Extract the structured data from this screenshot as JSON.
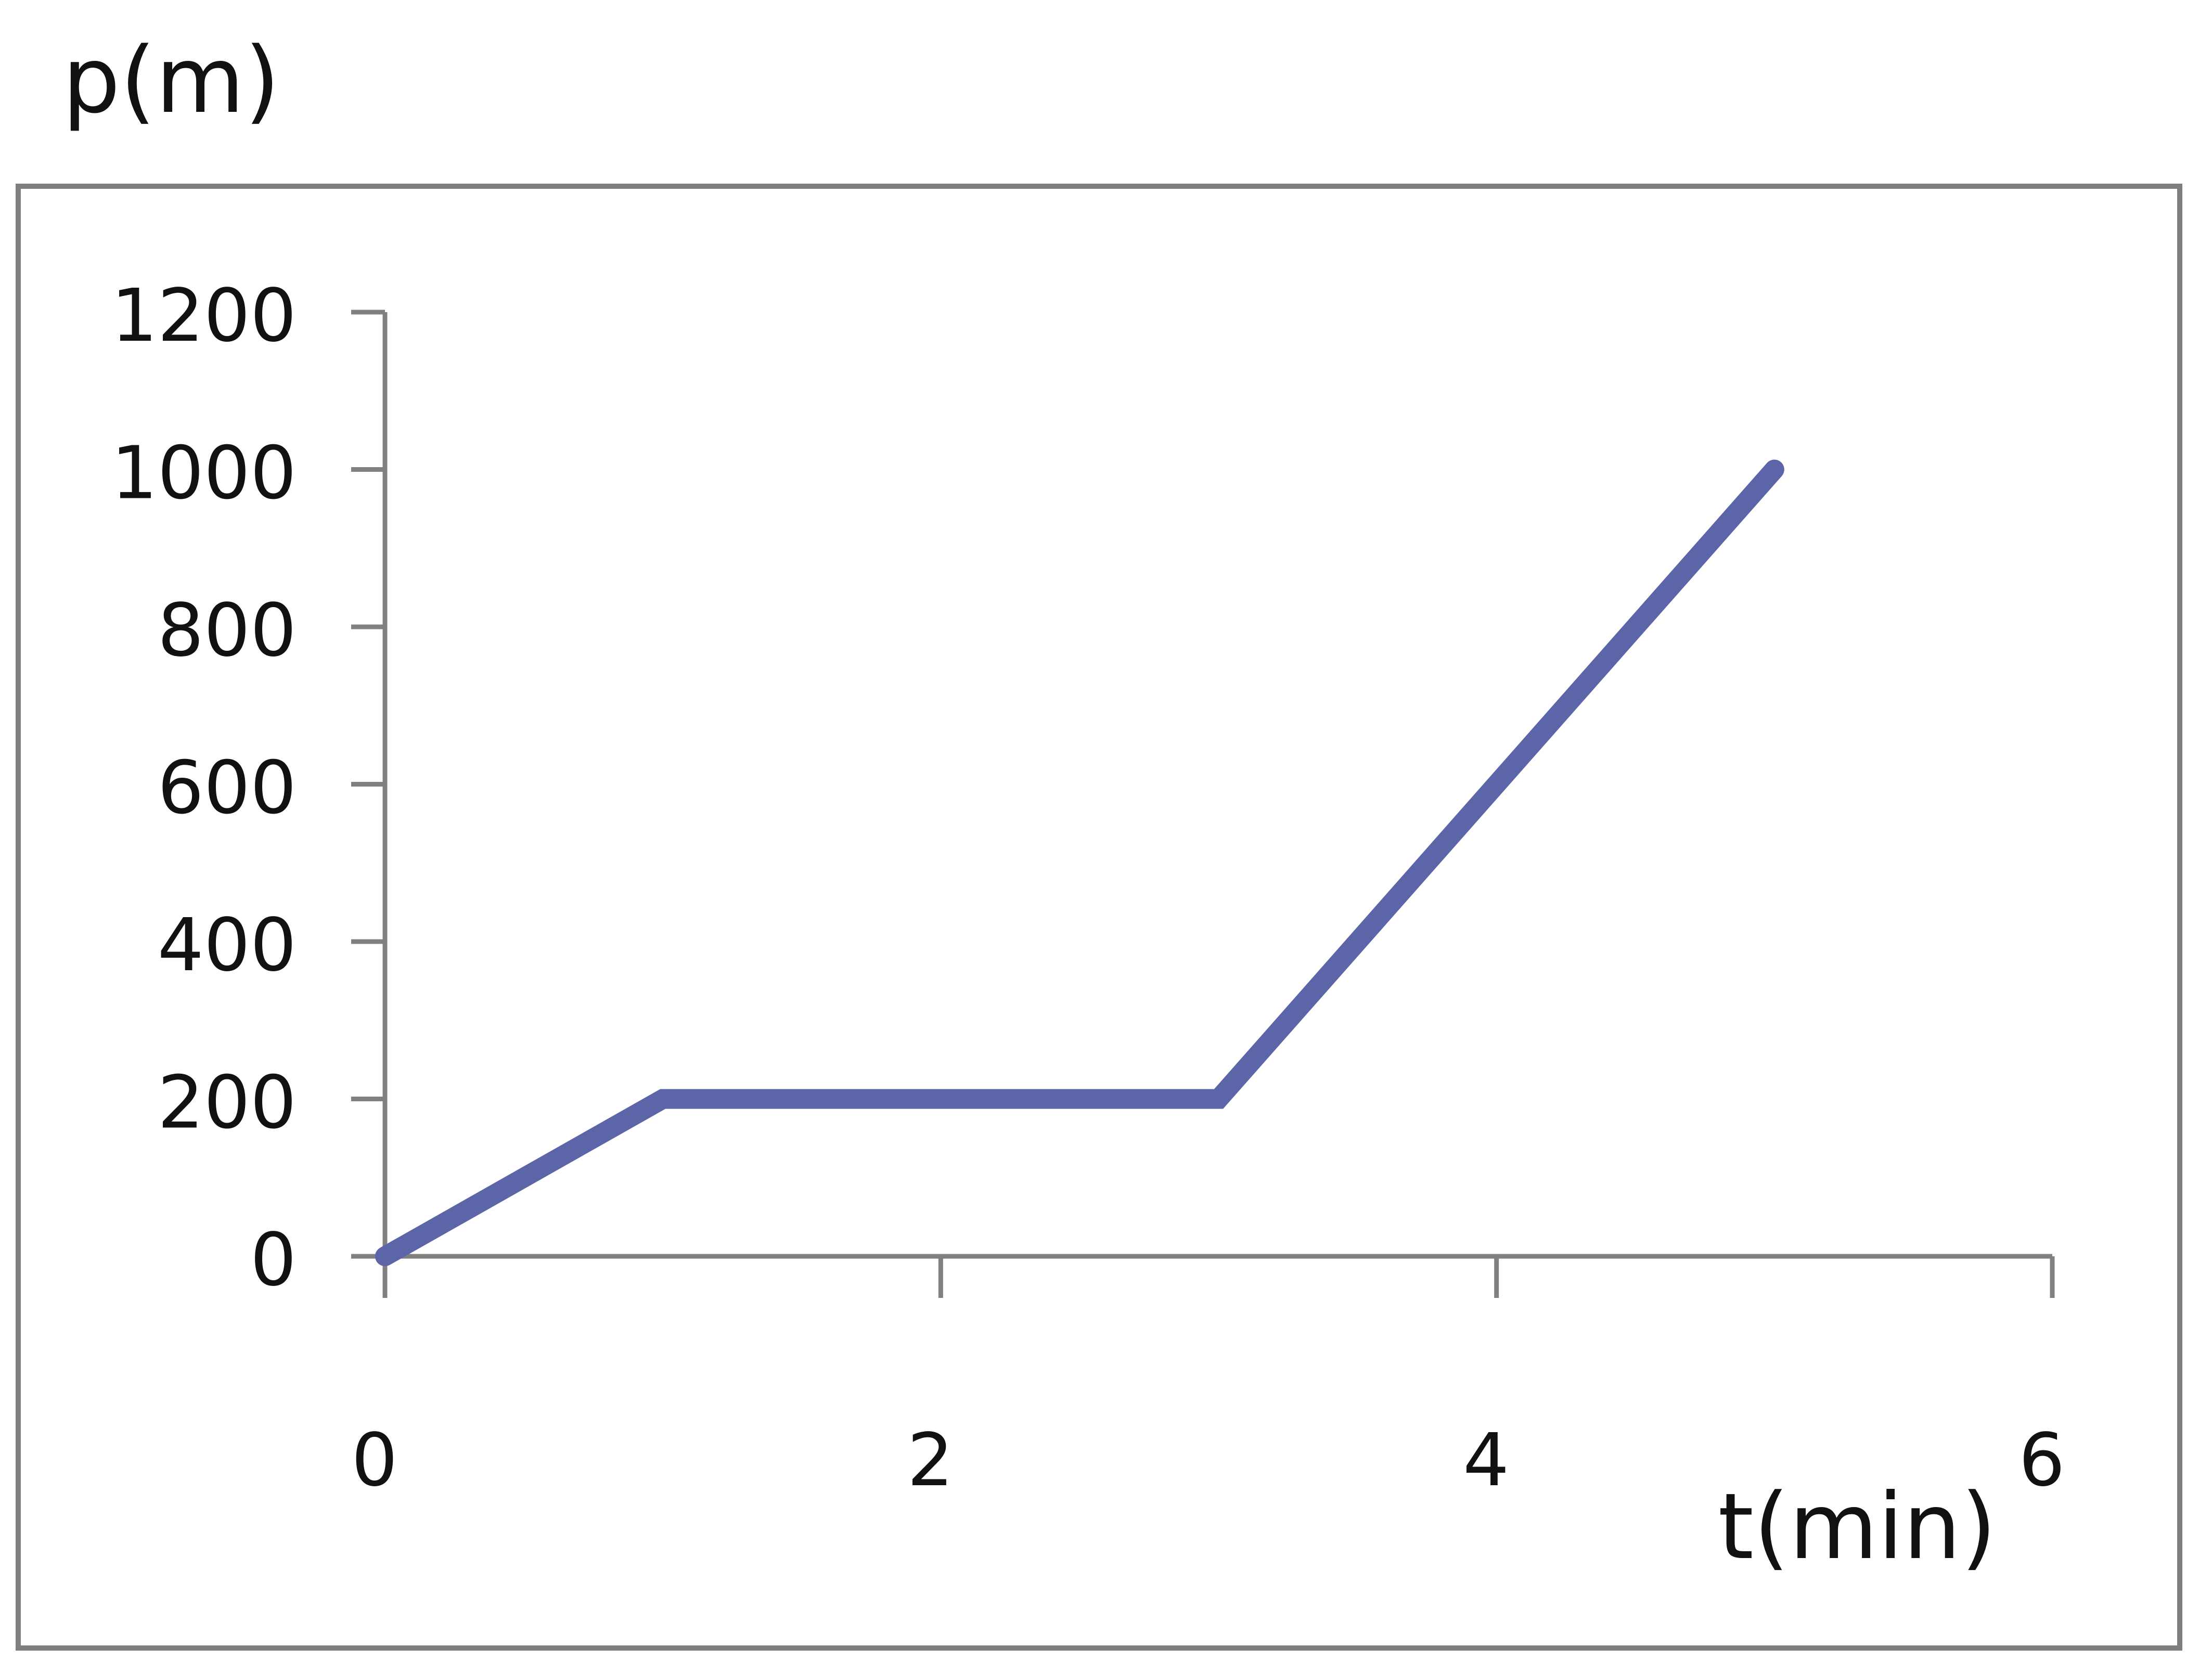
{
  "chart_data": {
    "type": "line",
    "title": "",
    "xlabel": "t(min)",
    "ylabel": "p(m)",
    "x": [
      0,
      1,
      3,
      5
    ],
    "series": [
      {
        "values": [
          0,
          200,
          200,
          1000
        ]
      }
    ],
    "xlim": [
      0,
      6
    ],
    "ylim": [
      0,
      1200
    ],
    "xticks": [
      "0",
      "2",
      "4",
      "6"
    ],
    "yticks": [
      "0",
      "200",
      "400",
      "600",
      "800",
      "1000",
      "1200"
    ],
    "grid": false,
    "legend": "none",
    "colors": {
      "series": "#5b65a8",
      "axis": "#808080",
      "frame": "#7f7f7f",
      "text": "#111111"
    }
  }
}
